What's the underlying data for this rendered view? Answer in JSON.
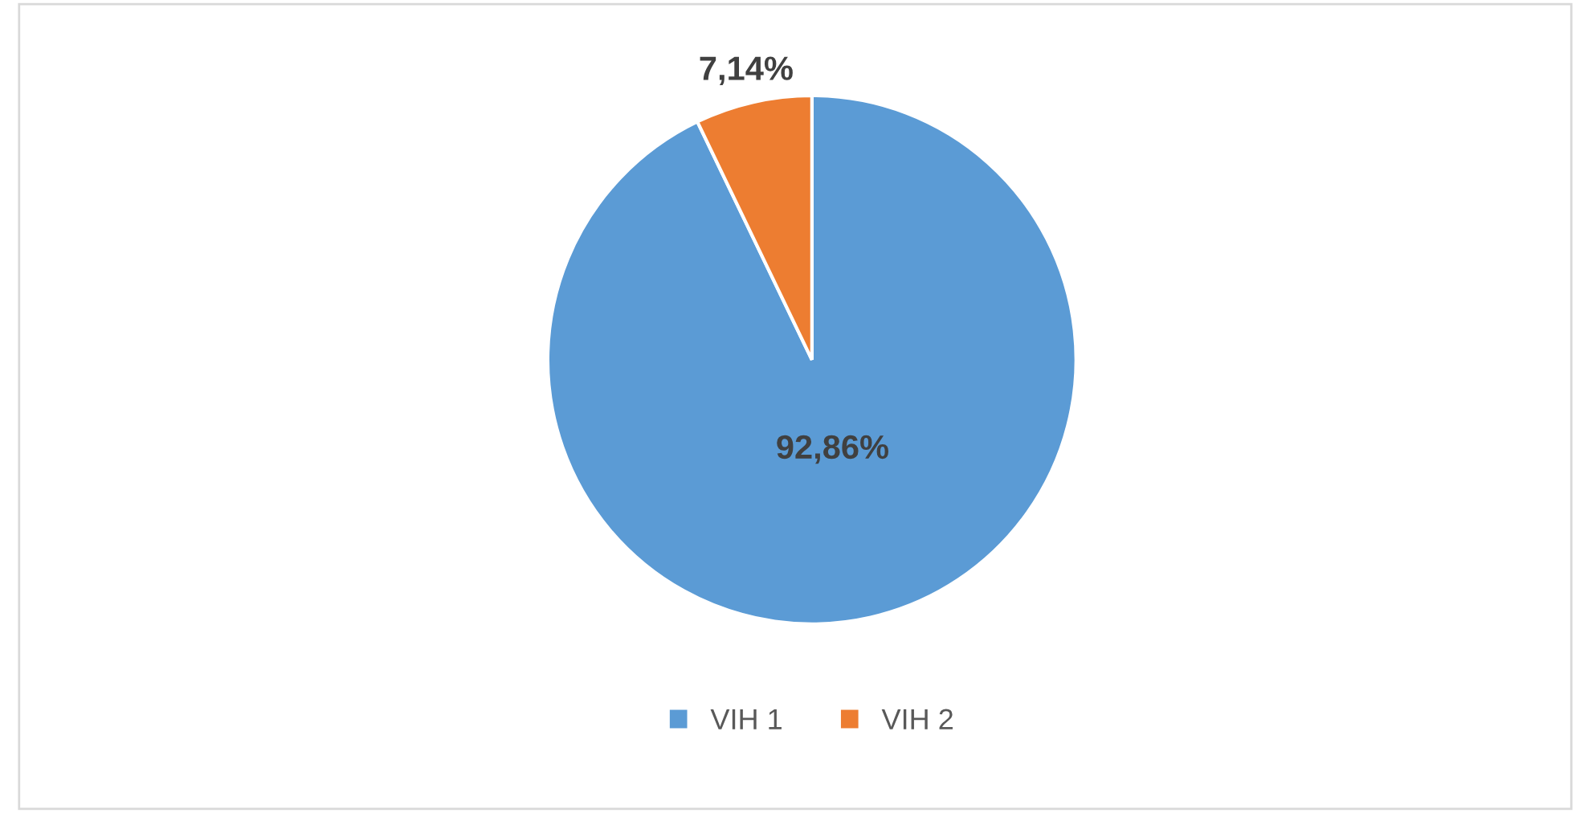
{
  "chart_data": {
    "type": "pie",
    "categories": [
      "VIH 1",
      "VIH 2"
    ],
    "values": [
      92.86,
      7.14
    ],
    "colors": [
      "#5b9bd5",
      "#ed7d31"
    ],
    "value_labels": [
      "92,86%",
      "7,14%"
    ],
    "legend": "bottom"
  }
}
